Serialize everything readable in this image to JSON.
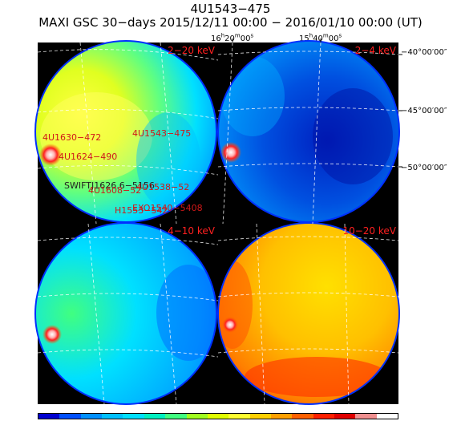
{
  "title_line1": "4U1543−475",
  "title_line2": "MAXI GSC 30−days 2015/12/11 00:00 − 2016/01/10 00:00 (UT)",
  "ra_labels": [
    "16h20m00s",
    "15h40m00s"
  ],
  "dec_labels": [
    "−40°00′00″",
    "−45°00′00″",
    "−50°00′00″"
  ],
  "panels": [
    {
      "band": "2−20 keV"
    },
    {
      "band": "2−4 keV"
    },
    {
      "band": "4−10 keV"
    },
    {
      "band": "10−20 keV"
    }
  ],
  "sources": [
    "4U1630−472",
    "4U1543−475",
    "4U1624−490",
    "SWIFTJ1626.6−5156",
    "4U1538−52",
    "4U1608−52",
    "H1553−542",
    "EXO1540−5408"
  ],
  "colors": {
    "label_red": "#ff2020",
    "colorbar": [
      "#0000d0",
      "#0050ff",
      "#0090ff",
      "#00c0ff",
      "#00e0ff",
      "#00f0c0",
      "#40ff80",
      "#a0ff20",
      "#e0ff00",
      "#ffff30",
      "#ffd000",
      "#ffa000",
      "#ff6000",
      "#ff2000",
      "#e00000",
      "#f09090",
      "#ffffff"
    ]
  }
}
